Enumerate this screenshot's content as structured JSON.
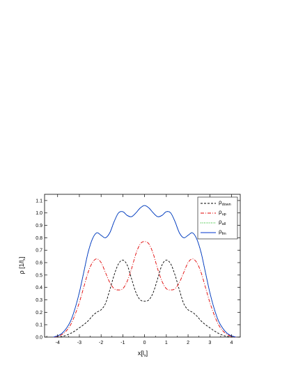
{
  "chart_data": {
    "type": "line",
    "xlim": [
      -4.6,
      4.4
    ],
    "ylim": [
      0.0,
      1.15
    ],
    "x_ticks": [
      "-4",
      "-3",
      "-2",
      "-1",
      "0",
      "1",
      "2",
      "3",
      "4"
    ],
    "y_ticks": [
      "0.0",
      "0.1",
      "0.2",
      "0.3",
      "0.4",
      "0.5",
      "0.6",
      "0.7",
      "0.8",
      "0.9",
      "1.0",
      "1.1"
    ],
    "xlabel": {
      "main": "x[l",
      "sub": "x",
      "tail": "]"
    },
    "ylabel": {
      "main": "ρ [1/l",
      "sub": "x",
      "tail": "]"
    },
    "legend_position": "top-right",
    "grid": false,
    "series": [
      {
        "name": "ρ",
        "sub": "down",
        "color": "#000000",
        "dash": "3,2",
        "x": [
          -4.2,
          -4.0,
          -3.8,
          -3.6,
          -3.4,
          -3.2,
          -3.0,
          -2.8,
          -2.6,
          -2.4,
          -2.2,
          -2.0,
          -1.8,
          -1.6,
          -1.4,
          -1.2,
          -1.0,
          -0.8,
          -0.6,
          -0.4,
          -0.2,
          0.0,
          0.2,
          0.4,
          0.6,
          0.8,
          1.0,
          1.2,
          1.4,
          1.6,
          1.8,
          2.0,
          2.2,
          2.4,
          2.6,
          2.8,
          3.0,
          3.2,
          3.4,
          3.6,
          3.8,
          4.0,
          4.2
        ],
        "y": [
          0.0,
          0.0,
          0.005,
          0.015,
          0.03,
          0.05,
          0.075,
          0.1,
          0.13,
          0.17,
          0.2,
          0.22,
          0.27,
          0.38,
          0.5,
          0.59,
          0.62,
          0.58,
          0.47,
          0.36,
          0.3,
          0.29,
          0.3,
          0.36,
          0.47,
          0.58,
          0.62,
          0.59,
          0.5,
          0.38,
          0.27,
          0.22,
          0.2,
          0.17,
          0.13,
          0.1,
          0.075,
          0.05,
          0.03,
          0.015,
          0.005,
          0.0,
          0.0
        ]
      },
      {
        "name": "ρ",
        "sub": "up",
        "color": "#e00000",
        "dash": "5,2,1,2",
        "x": [
          -4.2,
          -4.0,
          -3.8,
          -3.6,
          -3.4,
          -3.2,
          -3.0,
          -2.8,
          -2.6,
          -2.4,
          -2.2,
          -2.0,
          -1.8,
          -1.6,
          -1.4,
          -1.2,
          -1.0,
          -0.8,
          -0.6,
          -0.4,
          -0.2,
          0.0,
          0.2,
          0.4,
          0.6,
          0.8,
          1.0,
          1.2,
          1.4,
          1.6,
          1.8,
          2.0,
          2.2,
          2.4,
          2.6,
          2.8,
          3.0,
          3.2,
          3.4,
          3.6,
          3.8,
          4.0,
          4.2
        ],
        "y": [
          0.0,
          0.005,
          0.02,
          0.05,
          0.1,
          0.18,
          0.28,
          0.4,
          0.52,
          0.6,
          0.63,
          0.6,
          0.52,
          0.44,
          0.39,
          0.38,
          0.39,
          0.45,
          0.55,
          0.67,
          0.75,
          0.77,
          0.75,
          0.67,
          0.55,
          0.45,
          0.39,
          0.38,
          0.39,
          0.44,
          0.52,
          0.6,
          0.63,
          0.6,
          0.52,
          0.4,
          0.28,
          0.18,
          0.1,
          0.05,
          0.02,
          0.005,
          0.0
        ]
      },
      {
        "name": "ρ",
        "sub": "all",
        "color": "#00b000",
        "dash": "1,1.5",
        "x": [
          -4.2,
          -4.0,
          -3.8,
          -3.6,
          -3.4,
          -3.2,
          -3.0,
          -2.8,
          -2.6,
          -2.4,
          -2.2,
          -2.0,
          -1.8,
          -1.6,
          -1.4,
          -1.2,
          -1.0,
          -0.8,
          -0.6,
          -0.4,
          -0.2,
          0.0,
          0.2,
          0.4,
          0.6,
          0.8,
          1.0,
          1.2,
          1.4,
          1.6,
          1.8,
          2.0,
          2.2,
          2.4,
          2.6,
          2.8,
          3.0,
          3.2,
          3.4,
          3.6,
          3.8,
          4.0,
          4.2
        ],
        "y": [
          0.0,
          0.01,
          0.03,
          0.07,
          0.13,
          0.23,
          0.36,
          0.52,
          0.68,
          0.79,
          0.84,
          0.82,
          0.8,
          0.84,
          0.93,
          1.0,
          1.01,
          0.98,
          0.97,
          1.0,
          1.04,
          1.06,
          1.04,
          1.0,
          0.97,
          0.98,
          1.01,
          1.0,
          0.93,
          0.84,
          0.8,
          0.82,
          0.84,
          0.79,
          0.68,
          0.52,
          0.36,
          0.23,
          0.13,
          0.07,
          0.03,
          0.01,
          0.0
        ]
      },
      {
        "name": "ρ",
        "sub": "fm",
        "color": "#0033cc",
        "dash": "",
        "x": [
          -4.2,
          -4.0,
          -3.8,
          -3.6,
          -3.4,
          -3.2,
          -3.0,
          -2.8,
          -2.6,
          -2.4,
          -2.2,
          -2.0,
          -1.8,
          -1.6,
          -1.4,
          -1.2,
          -1.0,
          -0.8,
          -0.6,
          -0.4,
          -0.2,
          0.0,
          0.2,
          0.4,
          0.6,
          0.8,
          1.0,
          1.2,
          1.4,
          1.6,
          1.8,
          2.0,
          2.2,
          2.4,
          2.6,
          2.8,
          3.0,
          3.2,
          3.4,
          3.6,
          3.8,
          4.0,
          4.2
        ],
        "y": [
          0.0,
          0.01,
          0.03,
          0.07,
          0.13,
          0.23,
          0.36,
          0.52,
          0.68,
          0.79,
          0.84,
          0.82,
          0.8,
          0.84,
          0.93,
          1.0,
          1.01,
          0.98,
          0.97,
          1.0,
          1.04,
          1.06,
          1.04,
          1.0,
          0.97,
          0.98,
          1.01,
          1.0,
          0.93,
          0.84,
          0.8,
          0.82,
          0.84,
          0.79,
          0.68,
          0.52,
          0.36,
          0.23,
          0.13,
          0.07,
          0.03,
          0.01,
          0.0
        ]
      }
    ]
  }
}
